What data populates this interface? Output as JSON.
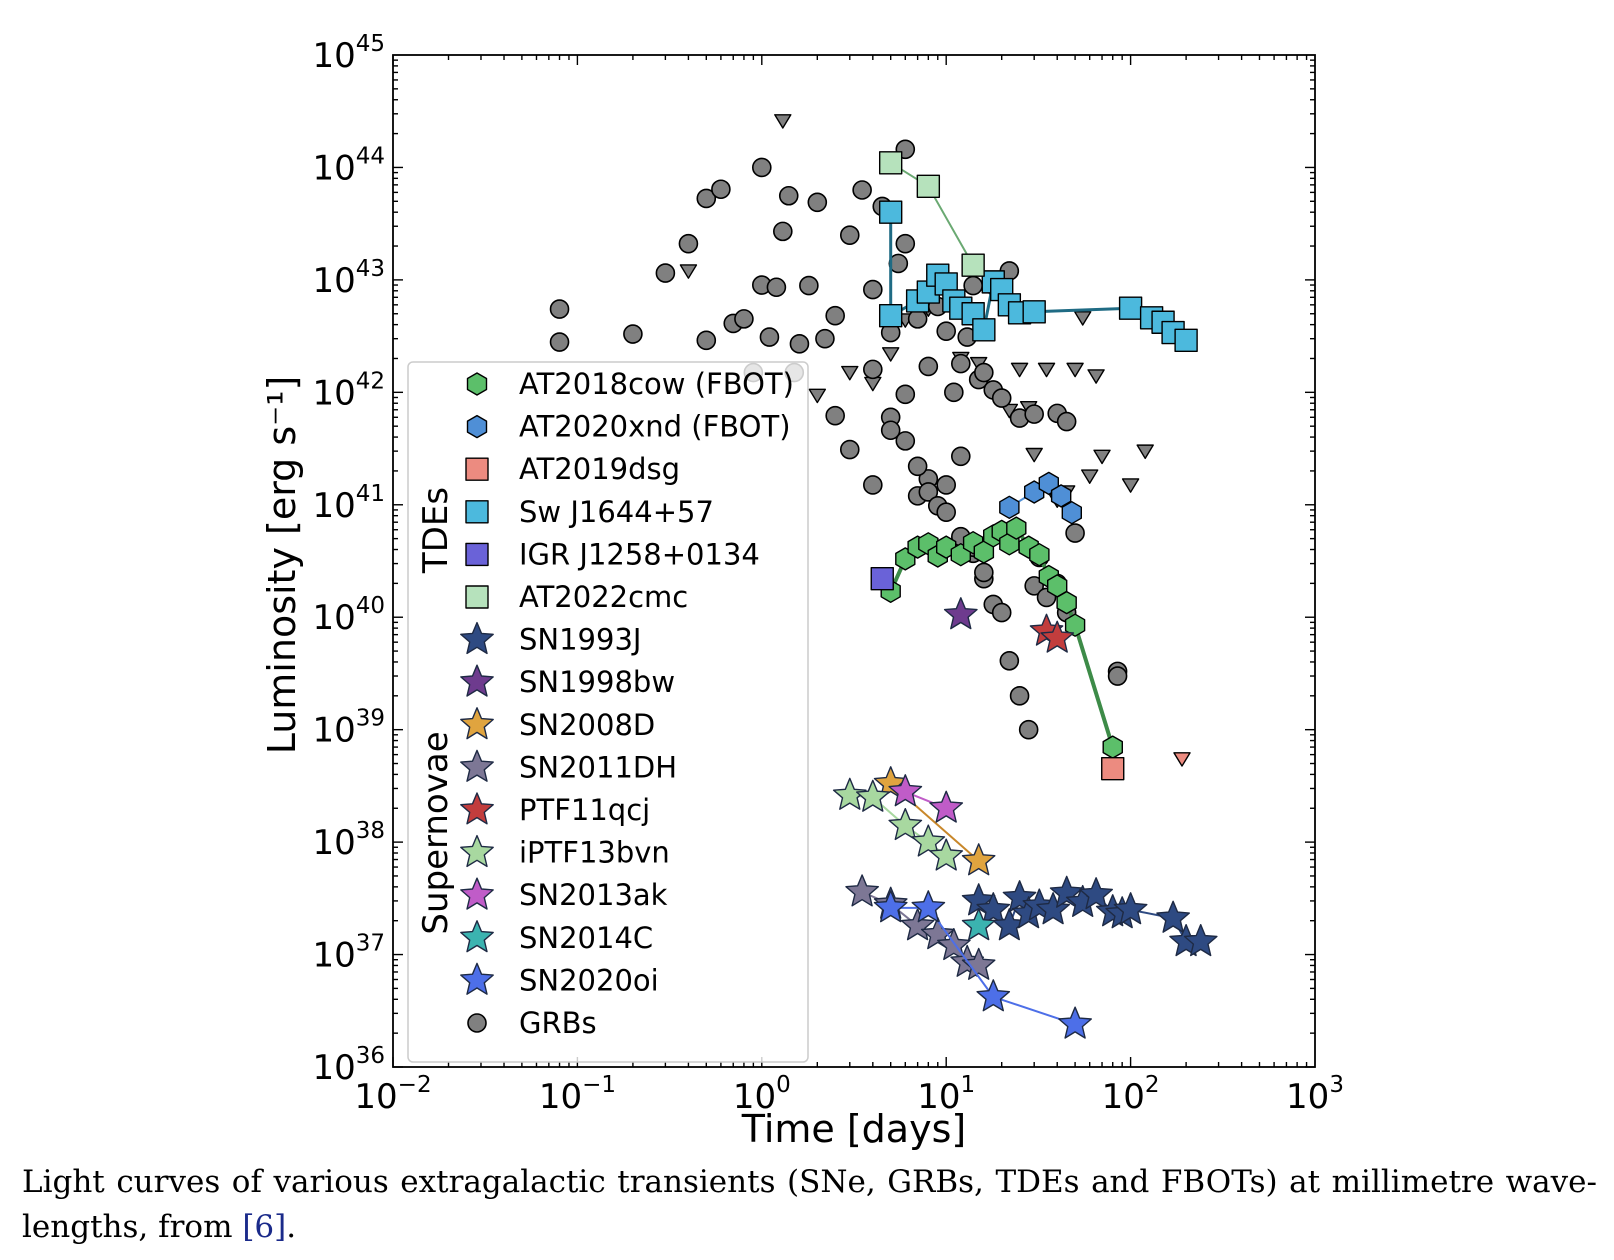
{
  "chart_data": {
    "type": "scatter",
    "xscale": "log",
    "yscale": "log",
    "xlim": [
      0.01,
      1000
    ],
    "ylim": [
      1e+36,
      1e+45
    ],
    "xlabel": "Time [days]",
    "ylabel": "Luminosity [erg s⁻¹]",
    "x_tick_labels": [
      {
        "base": "10",
        "exp": "−2",
        "value": 0.01
      },
      {
        "base": "10",
        "exp": "−1",
        "value": 0.1
      },
      {
        "base": "10",
        "exp": "0",
        "value": 1
      },
      {
        "base": "10",
        "exp": "1",
        "value": 10
      },
      {
        "base": "10",
        "exp": "2",
        "value": 100
      },
      {
        "base": "10",
        "exp": "3",
        "value": 1000
      }
    ],
    "y_tick_labels": [
      {
        "base": "10",
        "exp": "36",
        "value": 1e+36
      },
      {
        "base": "10",
        "exp": "37",
        "value": 1e+37
      },
      {
        "base": "10",
        "exp": "38",
        "value": 1e+38
      },
      {
        "base": "10",
        "exp": "39",
        "value": 1e+39
      },
      {
        "base": "10",
        "exp": "40",
        "value": 1e+40
      },
      {
        "base": "10",
        "exp": "41",
        "value": 1e+41
      },
      {
        "base": "10",
        "exp": "42",
        "value": 1e+42
      },
      {
        "base": "10",
        "exp": "43",
        "value": 1e+43
      },
      {
        "base": "10",
        "exp": "44",
        "value": 1e+44
      },
      {
        "base": "10",
        "exp": "45",
        "value": 1e+45
      }
    ],
    "legend_group_labels": [
      "TDEs",
      "Supernovae"
    ],
    "legend_position": "center-left",
    "series": [
      {
        "name": "AT2018cow (FBOT)",
        "marker": "hexagon",
        "color": "#5cbf6a",
        "line_color": "#3d8b48",
        "line_width": 4,
        "points": [
          [
            5,
            1.7e+40
          ],
          [
            6,
            3.3e+40
          ],
          [
            7,
            4.2e+40
          ],
          [
            8,
            4.5e+40
          ],
          [
            9,
            3.5e+40
          ],
          [
            10,
            4.2e+40
          ],
          [
            12,
            3.6e+40
          ],
          [
            14,
            4.6e+40
          ],
          [
            16,
            3.8e+40
          ],
          [
            18,
            5.3e+40
          ],
          [
            20,
            5.8e+40
          ],
          [
            22,
            4.5e+40
          ],
          [
            24,
            6.2e+40
          ],
          [
            28,
            4.2e+40
          ],
          [
            32,
            3.6e+40
          ],
          [
            36,
            2.3e+40
          ],
          [
            40,
            1.9e+40
          ],
          [
            45,
            1.35e+40
          ],
          [
            50,
            8.5e+39
          ],
          [
            80,
            7e+38
          ]
        ]
      },
      {
        "name": "AT2020xnd (FBOT)",
        "marker": "hexagon",
        "color": "#4f8fd6",
        "line_color": "#4f8fd6",
        "line_width": 2,
        "points": [
          [
            22,
            9.5e+40
          ],
          [
            30,
            1.3e+41
          ],
          [
            36,
            1.55e+41
          ],
          [
            42,
            1.2e+41
          ],
          [
            48,
            8.5e+40
          ]
        ]
      },
      {
        "name": "AT2019dsg",
        "marker": "square",
        "color": "#ec8b80",
        "line_color": "#a82a1c",
        "line_width": 4,
        "points": [
          [
            80,
            4.5e+38
          ]
        ]
      },
      {
        "name": "AT2019dsg upper limit",
        "marker": "triangle-down",
        "color": "#ec8b80",
        "line_color": "#a82a1c",
        "line_width": 4,
        "legend": false,
        "points": [
          [
            190,
            5.5e+38
          ]
        ]
      },
      {
        "name": "Sw J1644+57",
        "marker": "square",
        "color": "#4cb9dd",
        "line_color": "#1f6b84",
        "line_width": 3,
        "points": [
          [
            5,
            4e+43
          ],
          [
            5,
            4.8e+42
          ],
          [
            7,
            6.5e+42
          ],
          [
            8,
            7.8e+42
          ],
          [
            9,
            1.1e+43
          ],
          [
            10,
            9.2e+42
          ],
          [
            11,
            6.5e+42
          ],
          [
            12,
            5.6e+42
          ],
          [
            14,
            5e+42
          ],
          [
            16,
            3.6e+42
          ],
          [
            18,
            9.6e+42
          ],
          [
            20,
            8.2e+42
          ],
          [
            22,
            6e+42
          ],
          [
            25,
            5.1e+42
          ],
          [
            30,
            5.2e+42
          ],
          [
            100,
            5.6e+42
          ],
          [
            130,
            4.6e+42
          ],
          [
            150,
            4.2e+42
          ],
          [
            170,
            3.4e+42
          ],
          [
            200,
            2.9e+42
          ]
        ]
      },
      {
        "name": "IGR J1258+0134",
        "marker": "square",
        "color": "#6a62d8",
        "line_color": "#6a62d8",
        "line_width": 2,
        "points": [
          [
            4.5,
            2.2e+40
          ]
        ]
      },
      {
        "name": "AT2022cmc",
        "marker": "square",
        "color": "#b6e2bc",
        "line_color": "#6aa972",
        "line_width": 2,
        "points": [
          [
            5,
            1.1e+44
          ],
          [
            8,
            6.8e+43
          ],
          [
            14,
            1.35e+43
          ]
        ]
      },
      {
        "name": "SN1993J",
        "marker": "star",
        "color": "#2e4a82",
        "line_color": "#2e4a82",
        "line_width": 2,
        "points": [
          [
            15,
            3e+37
          ],
          [
            18,
            2.5e+37
          ],
          [
            22,
            1.8e+37
          ],
          [
            25,
            3.2e+37
          ],
          [
            28,
            2.3e+37
          ],
          [
            32,
            2.7e+37
          ],
          [
            38,
            2.5e+37
          ],
          [
            45,
            3.5e+37
          ],
          [
            55,
            2.9e+37
          ],
          [
            65,
            3.4e+37
          ],
          [
            80,
            2.4e+37
          ],
          [
            90,
            2.3e+37
          ],
          [
            100,
            2.5e+37
          ],
          [
            170,
            2.1e+37
          ],
          [
            200,
            1.3e+37
          ],
          [
            240,
            1.3e+37
          ]
        ]
      },
      {
        "name": "SN1998bw",
        "marker": "star",
        "color": "#6e3b8e",
        "line_color": "#6e3b8e",
        "line_width": 2,
        "points": [
          [
            12,
            1.05e+40
          ]
        ]
      },
      {
        "name": "SN2008D",
        "marker": "star",
        "color": "#e0a43f",
        "line_color": "#c8872a",
        "line_width": 2,
        "points": [
          [
            5,
            3.3e+38
          ],
          [
            15,
            6.8e+37
          ]
        ]
      },
      {
        "name": "SN2011DH",
        "marker": "star",
        "color": "#7d7795",
        "line_color": "#7d7795",
        "line_width": 2,
        "points": [
          [
            3.5,
            3.6e+37
          ],
          [
            5,
            2.8e+37
          ],
          [
            7,
            1.8e+37
          ],
          [
            9,
            1.5e+37
          ],
          [
            11,
            1.2e+37
          ],
          [
            13,
            8.5e+36
          ],
          [
            15,
            8e+36
          ]
        ]
      },
      {
        "name": "PTF11qcj",
        "marker": "star",
        "color": "#c23d3d",
        "line_color": "#c23d3d",
        "line_width": 2,
        "points": [
          [
            35,
            7.5e+39
          ],
          [
            40,
            6.5e+39
          ]
        ]
      },
      {
        "name": "iPTF13bvn",
        "marker": "star",
        "color": "#a8d8a0",
        "line_color": "#a8d8a0",
        "line_width": 2,
        "points": [
          [
            3,
            2.6e+38
          ],
          [
            4,
            2.5e+38
          ],
          [
            6,
            1.4e+38
          ],
          [
            8,
            1e+38
          ],
          [
            10,
            7.5e+37
          ]
        ]
      },
      {
        "name": "SN2013ak",
        "marker": "star",
        "color": "#c05cc8",
        "line_color": "#c05cc8",
        "line_width": 2,
        "points": [
          [
            6,
            2.8e+38
          ],
          [
            10,
            2e+38
          ]
        ]
      },
      {
        "name": "SN2014C",
        "marker": "star",
        "color": "#3bb3b0",
        "line_color": "#3bb3b0",
        "line_width": 2,
        "points": [
          [
            15,
            1.8e+37
          ]
        ]
      },
      {
        "name": "SN2020oi",
        "marker": "star",
        "color": "#4d6fe8",
        "line_color": "#4d6fe8",
        "line_width": 2,
        "points": [
          [
            5,
            2.6e+37
          ],
          [
            8,
            2.6e+37
          ],
          [
            18,
            4.2e+36
          ],
          [
            50,
            2.4e+36
          ]
        ]
      },
      {
        "name": "GRBs",
        "marker": "circle",
        "color": "#808080",
        "line_color": "#808080",
        "line_width": 2,
        "points": [
          [
            0.08,
            2.8e+42
          ],
          [
            0.08,
            5.5e+42
          ],
          [
            0.2,
            3.3e+42
          ],
          [
            0.3,
            1.15e+43
          ],
          [
            0.4,
            2.1e+43
          ],
          [
            0.5,
            2.9e+42
          ],
          [
            0.5,
            5.3e+43
          ],
          [
            0.6,
            6.4e+43
          ],
          [
            0.7,
            4.1e+42
          ],
          [
            0.8,
            4.5e+42
          ],
          [
            0.9,
            1.5e+42
          ],
          [
            1,
            1e+44
          ],
          [
            1,
            9e+42
          ],
          [
            1.1,
            3.1e+42
          ],
          [
            1.2,
            8.6e+42
          ],
          [
            1.3,
            2.7e+43
          ],
          [
            1.4,
            5.6e+43
          ],
          [
            1.5,
            1.5e+42
          ],
          [
            1.6,
            2.7e+42
          ],
          [
            1.8,
            8.9e+42
          ],
          [
            2,
            4.9e+43
          ],
          [
            2.2,
            3e+42
          ],
          [
            2.5,
            4.8e+42
          ],
          [
            3,
            2.5e+43
          ],
          [
            3.5,
            6.3e+43
          ],
          [
            4,
            1.6e+42
          ],
          [
            4,
            8.2e+42
          ],
          [
            4.5,
            4.5e+43
          ],
          [
            5,
            3.4e+42
          ],
          [
            5.5,
            1.4e+43
          ],
          [
            6,
            1.45e+44
          ],
          [
            6,
            2.1e+43
          ],
          [
            7,
            4.5e+42
          ],
          [
            8,
            1.7e+42
          ],
          [
            9,
            5.8e+42
          ],
          [
            10,
            3.5e+42
          ],
          [
            11,
            1e+42
          ],
          [
            12,
            1.8e+42
          ],
          [
            13,
            3.1e+42
          ],
          [
            14,
            8.9e+42
          ],
          [
            15,
            1.3e+42
          ],
          [
            16,
            1.5e+42
          ],
          [
            18,
            1.05e+42
          ],
          [
            20,
            8.9e+41
          ],
          [
            22,
            1.2e+43
          ],
          [
            25,
            5.9e+41
          ],
          [
            30,
            6.4e+41
          ],
          [
            40,
            6.5e+41
          ],
          [
            45,
            5.5e+41
          ],
          [
            50,
            5.6e+40
          ],
          [
            5,
            6e+41
          ],
          [
            6,
            9.6e+41
          ],
          [
            7,
            1.2e+41
          ],
          [
            8,
            1.7e+41
          ],
          [
            10,
            1.5e+41
          ],
          [
            12,
            2.7e+41
          ],
          [
            14,
            3.7e+40
          ],
          [
            16,
            2.2e+40
          ],
          [
            18,
            1.3e+40
          ],
          [
            20,
            1.1e+40
          ],
          [
            22,
            4.1e+39
          ],
          [
            25,
            2e+39
          ],
          [
            28,
            1e+39
          ],
          [
            30,
            1.9e+40
          ],
          [
            32,
            3.4e+40
          ],
          [
            35,
            1.5e+40
          ],
          [
            40,
            2e+40
          ],
          [
            45,
            1.1e+40
          ],
          [
            85,
            3.3e+39
          ],
          [
            85,
            3e+39
          ],
          [
            2.5,
            6.2e+41
          ],
          [
            3,
            3.1e+41
          ],
          [
            4,
            1.5e+41
          ],
          [
            5,
            4.6e+41
          ],
          [
            6,
            3.7e+41
          ],
          [
            7,
            2.2e+41
          ],
          [
            8,
            1.3e+41
          ],
          [
            9,
            9.8e+40
          ],
          [
            10,
            8.6e+40
          ],
          [
            12,
            5.2e+40
          ],
          [
            14,
            4.2e+40
          ],
          [
            16,
            2.5e+40
          ]
        ]
      },
      {
        "name": "GRB upper limits",
        "marker": "triangle-down",
        "color": "#808080",
        "line_color": "#808080",
        "line_width": 2,
        "legend": false,
        "points": [
          [
            0.4,
            1.2e+43
          ],
          [
            1.3,
            2.6e+44
          ],
          [
            2,
            9.4e+41
          ],
          [
            3,
            1.5e+42
          ],
          [
            4,
            1.2e+42
          ],
          [
            5,
            2.2e+42
          ],
          [
            6,
            4.4e+42
          ],
          [
            8,
            5.5e+42
          ],
          [
            9,
            1.2e+43
          ],
          [
            12,
            2e+42
          ],
          [
            15,
            1.8e+42
          ],
          [
            18,
            7.7e+42
          ],
          [
            22,
            6.9e+41
          ],
          [
            25,
            1.6e+42
          ],
          [
            28,
            7.3e+41
          ],
          [
            30,
            2.8e+41
          ],
          [
            35,
            1.6e+42
          ],
          [
            40,
            1.1e+41
          ],
          [
            45,
            1.3e+41
          ],
          [
            50,
            1.6e+42
          ],
          [
            55,
            4.6e+42
          ],
          [
            60,
            1.8e+41
          ],
          [
            65,
            1.4e+42
          ],
          [
            70,
            2.7e+41
          ],
          [
            100,
            1.5e+41
          ],
          [
            120,
            3e+41
          ]
        ]
      }
    ]
  },
  "caption": {
    "text": "Light curves of various extragalactic transients (SNe, GRBs, TDEs and FBOTs) at millimetre wave-lengths, from ",
    "citation": "[6]",
    "end": "."
  }
}
